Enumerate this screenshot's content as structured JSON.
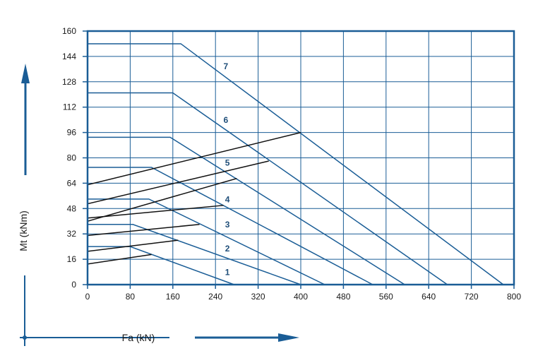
{
  "colors": {
    "frame": "#1a5d96",
    "grid": "#1a5d96",
    "curve": "#1a5d96",
    "black_line": "#111111",
    "arrow": "#1a5d96"
  },
  "chart_data": {
    "type": "line",
    "xlabel": "Fa (kN)",
    "ylabel": "Mt (kNm)",
    "xlim": [
      0,
      800
    ],
    "ylim": [
      0,
      160
    ],
    "x_ticks": [
      "0",
      "80",
      "160",
      "240",
      "320",
      "400",
      "480",
      "560",
      "640",
      "720",
      "800"
    ],
    "y_ticks": [
      "0",
      "16",
      "32",
      "48",
      "64",
      "80",
      "96",
      "112",
      "128",
      "144",
      "160"
    ],
    "grid": true,
    "series": [
      {
        "name": "1",
        "x": [
          0,
          80,
          275
        ],
        "y": [
          24,
          24,
          0
        ]
      },
      {
        "name": "2",
        "x": [
          0,
          85,
          400
        ],
        "y": [
          38,
          38,
          0
        ]
      },
      {
        "name": "3",
        "x": [
          0,
          115,
          445
        ],
        "y": [
          54,
          54,
          0
        ]
      },
      {
        "name": "4",
        "x": [
          0,
          120,
          535
        ],
        "y": [
          74,
          74,
          0
        ]
      },
      {
        "name": "5",
        "x": [
          0,
          155,
          595
        ],
        "y": [
          93,
          93,
          0
        ]
      },
      {
        "name": "6",
        "x": [
          0,
          160,
          675
        ],
        "y": [
          121,
          121,
          0
        ]
      },
      {
        "name": "7",
        "x": [
          0,
          175,
          780
        ],
        "y": [
          152,
          152,
          0
        ]
      }
    ],
    "load_lines": [
      {
        "x": [
          0,
          120
        ],
        "y": [
          13,
          19
        ]
      },
      {
        "x": [
          0,
          170
        ],
        "y": [
          21,
          28
        ]
      },
      {
        "x": [
          0,
          210
        ],
        "y": [
          31,
          38
        ]
      },
      {
        "x": [
          0,
          255
        ],
        "y": [
          42,
          50
        ]
      },
      {
        "x": [
          0,
          280
        ],
        "y": [
          40,
          67
        ]
      },
      {
        "x": [
          0,
          340
        ],
        "y": [
          51,
          78
        ]
      },
      {
        "x": [
          0,
          400
        ],
        "y": [
          63,
          96
        ]
      }
    ],
    "labels": [
      {
        "text": "1",
        "x": 258,
        "y": 6
      },
      {
        "text": "2",
        "x": 258,
        "y": 21
      },
      {
        "text": "3",
        "x": 258,
        "y": 36
      },
      {
        "text": "4",
        "x": 258,
        "y": 52
      },
      {
        "text": "5",
        "x": 258,
        "y": 75
      },
      {
        "text": "6",
        "x": 255,
        "y": 102
      },
      {
        "text": "7",
        "x": 255,
        "y": 136
      }
    ]
  }
}
